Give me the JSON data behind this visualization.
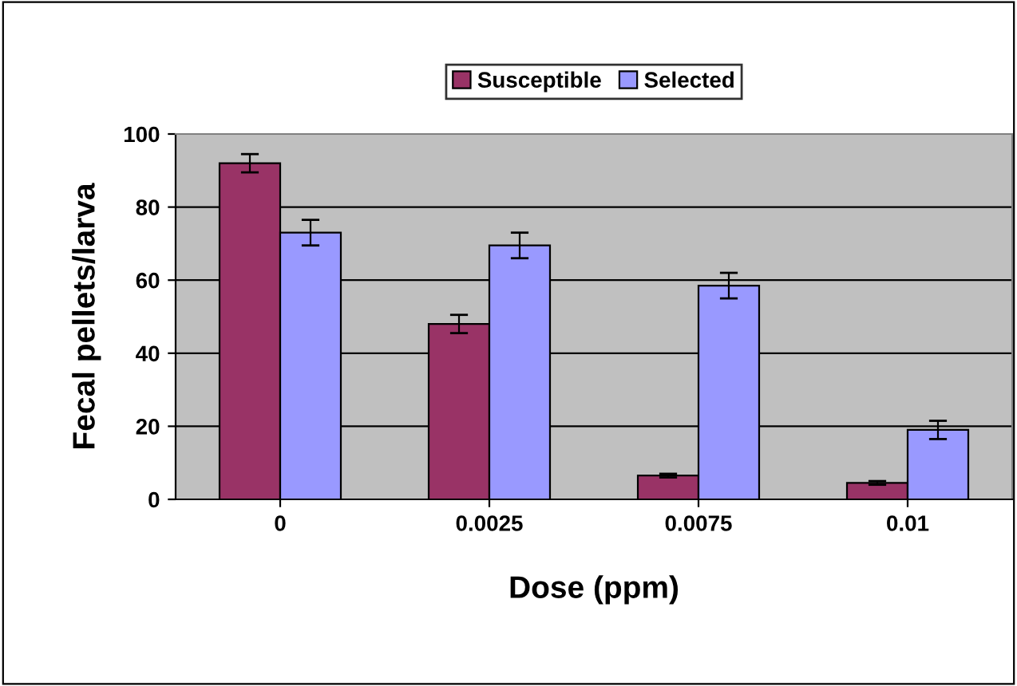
{
  "chart_data": {
    "type": "bar",
    "xlabel": "Dose (ppm)",
    "ylabel": "Fecal pellets/larva",
    "categories": [
      "0",
      "0.0025",
      "0.0075",
      "0.01"
    ],
    "series": [
      {
        "name": "Susceptible",
        "color": "#993366",
        "values": [
          92,
          48,
          6.5,
          4.5
        ],
        "errors": [
          2.5,
          2.5,
          0.5,
          0.5
        ]
      },
      {
        "name": "Selected",
        "color": "#9999ff",
        "values": [
          73,
          69.5,
          58.5,
          19
        ],
        "errors": [
          3.5,
          3.5,
          3.5,
          2.5
        ]
      }
    ],
    "ylim": [
      0,
      100
    ],
    "yticks": [
      0,
      20,
      40,
      60,
      80,
      100
    ],
    "grid": "y",
    "legend": "top"
  }
}
